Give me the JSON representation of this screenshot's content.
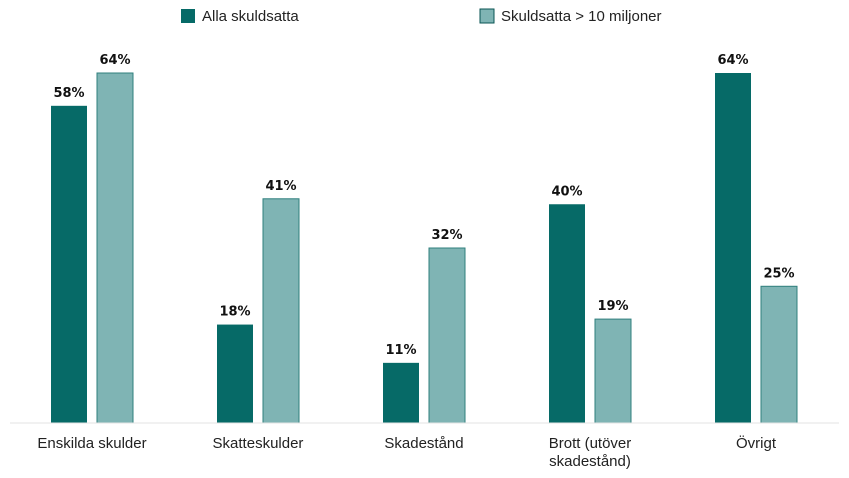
{
  "chart_data": {
    "type": "bar",
    "categories": [
      [
        "Enskilda skulder"
      ],
      [
        "Skatteskulder"
      ],
      [
        "Skadestånd"
      ],
      [
        "Brott (utöver",
        "skadestånd)"
      ],
      [
        "Övrigt"
      ]
    ],
    "series": [
      {
        "name": "Alla skuldsatta",
        "values": [
          58,
          18,
          11,
          40,
          64
        ],
        "color": "#066a67"
      },
      {
        "name": "Skuldsatta > 10 miljoner",
        "values": [
          64,
          41,
          32,
          19,
          25
        ],
        "color": "#7fb4b4"
      }
    ],
    "value_suffix": "%",
    "ylim": [
      0,
      64
    ],
    "grid": false,
    "legend_placement": "top-center",
    "title": "",
    "xlabel": "",
    "ylabel": ""
  }
}
